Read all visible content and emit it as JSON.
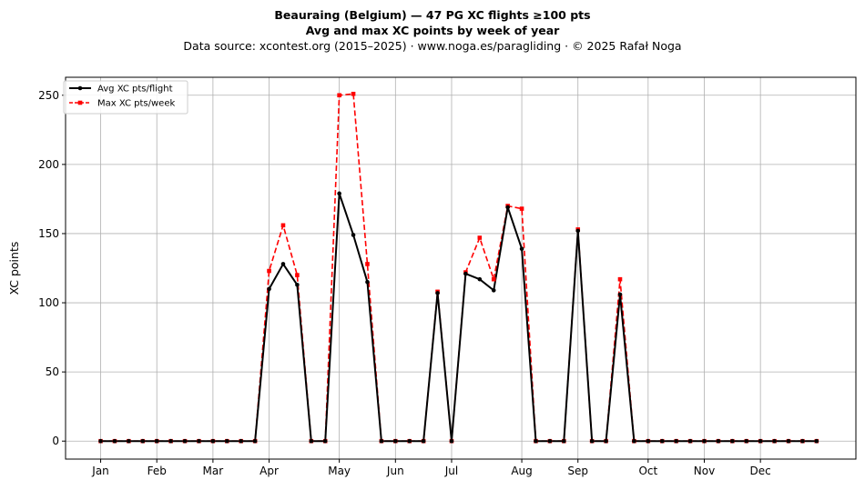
{
  "header": {
    "title_line1": "Beauraing (Belgium)  —  47 PG XC flights ≥100 pts",
    "title_line2": "Avg and max XC points by week of year",
    "subtitle": "Data source: xcontest.org (2015–2025)  ·  www.noga.es/paragliding  ·  © 2025 Rafał Noga"
  },
  "chart_data": {
    "type": "line",
    "title": "Beauraing (Belgium)  —  47 PG XC flights ≥100 pts",
    "xlabel": "",
    "ylabel": "XC points",
    "ylim": [
      -13,
      263
    ],
    "xlim": [
      -2.5,
      53.8
    ],
    "grid": true,
    "legend_position": "top-left",
    "x_ticks": [
      {
        "label": "Jan",
        "x": 0
      },
      {
        "label": "Feb",
        "x": 4
      },
      {
        "label": "Mar",
        "x": 8
      },
      {
        "label": "Apr",
        "x": 12
      },
      {
        "label": "May",
        "x": 17
      },
      {
        "label": "Jun",
        "x": 21
      },
      {
        "label": "Jul",
        "x": 25
      },
      {
        "label": "Aug",
        "x": 30
      },
      {
        "label": "Sep",
        "x": 34
      },
      {
        "label": "Oct",
        "x": 39
      },
      {
        "label": "Nov",
        "x": 43
      },
      {
        "label": "Dec",
        "x": 47
      }
    ],
    "y_ticks": [
      0,
      50,
      100,
      150,
      200,
      250
    ],
    "x": [
      0,
      1,
      2,
      3,
      4,
      5,
      6,
      7,
      8,
      9,
      10,
      11,
      12,
      13,
      14,
      15,
      16,
      17,
      18,
      19,
      20,
      21,
      22,
      23,
      24,
      25,
      26,
      27,
      28,
      29,
      30,
      31,
      32,
      33,
      34,
      35,
      36,
      37,
      38,
      39,
      40,
      41,
      42,
      43,
      44,
      45,
      46,
      47,
      48,
      49,
      50,
      51
    ],
    "series": [
      {
        "name": "Avg XC pts/flight",
        "color": "#000000",
        "style": "solid",
        "marker": "circle",
        "values": [
          0,
          0,
          0,
          0,
          0,
          0,
          0,
          0,
          0,
          0,
          0,
          0,
          110,
          128,
          113,
          0,
          0,
          179,
          149,
          115,
          0,
          0,
          0,
          0,
          107,
          0,
          121,
          117,
          109,
          169,
          139,
          0,
          0,
          0,
          152,
          0,
          0,
          106,
          0,
          0,
          0,
          0,
          0,
          0,
          0,
          0,
          0,
          0,
          0,
          0,
          0,
          0
        ]
      },
      {
        "name": "Max XC pts/week",
        "color": "#ff0000",
        "style": "dashed",
        "marker": "square",
        "values": [
          0,
          0,
          0,
          0,
          0,
          0,
          0,
          0,
          0,
          0,
          0,
          0,
          123,
          156,
          120,
          0,
          0,
          250,
          251,
          128,
          0,
          0,
          0,
          0,
          108,
          0,
          122,
          147,
          117,
          170,
          168,
          0,
          0,
          0,
          153,
          0,
          0,
          117,
          0,
          0,
          0,
          0,
          0,
          0,
          0,
          0,
          0,
          0,
          0,
          0,
          0,
          0
        ]
      }
    ]
  }
}
